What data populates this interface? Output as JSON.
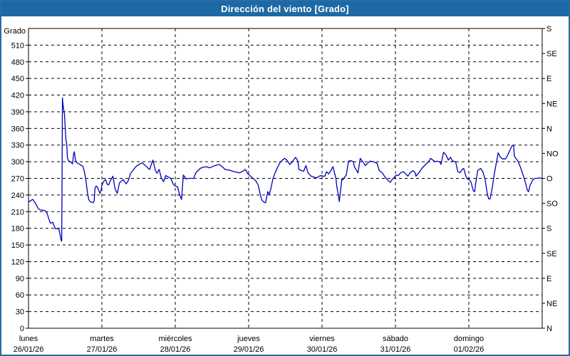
{
  "window": {
    "title": "Dirección del viento [Grado]"
  },
  "colors": {
    "title_bar_bg": "#1d69a5",
    "title_text": "#ffffff",
    "frame_border": "#2a6ca6",
    "plot_background": "#ffffff",
    "plot_border": "#000000",
    "grid": "#000000",
    "label_text": "#000000",
    "line": "#0000bb"
  },
  "chart_data": {
    "type": "line",
    "title": "Dirección del viento [Grado]",
    "y_axis_left": {
      "label": "Grado",
      "min": 0,
      "max": 540,
      "tick_step": 30,
      "tick_labels": [
        0,
        30,
        60,
        90,
        120,
        150,
        180,
        210,
        240,
        270,
        300,
        330,
        360,
        390,
        420,
        450,
        480,
        510
      ]
    },
    "y_axis_right": {
      "unit": "compass",
      "tick_step_deg": 45,
      "labels_top_to_bottom": [
        "S",
        "SE",
        "E",
        "NE",
        "N",
        "NO",
        "O",
        "SO",
        "S",
        "SE",
        "E",
        "NE",
        "N"
      ]
    },
    "x_axis": {
      "span_days": 7,
      "days": [
        {
          "name": "lunes",
          "date": "26/01/26"
        },
        {
          "name": "martes",
          "date": "27/01/26"
        },
        {
          "name": "miércoles",
          "date": "28/01/26"
        },
        {
          "name": "jueves",
          "date": "29/01/26"
        },
        {
          "name": "viernes",
          "date": "30/01/26"
        },
        {
          "name": "sábado",
          "date": "31/01/26"
        },
        {
          "name": "domingo",
          "date": "01/02/26"
        }
      ]
    },
    "grid": {
      "style": "dashed",
      "vertical": "one line per day",
      "horizontal_step_deg": 30
    },
    "legend": "none",
    "series": [
      {
        "name": "Dirección del viento",
        "color": "#0000bb",
        "points_t_days_vs_deg": [
          [
            0.0,
            227
          ],
          [
            0.03,
            230
          ],
          [
            0.06,
            232
          ],
          [
            0.1,
            224
          ],
          [
            0.13,
            216
          ],
          [
            0.16,
            213
          ],
          [
            0.22,
            212
          ],
          [
            0.25,
            208
          ],
          [
            0.28,
            196
          ],
          [
            0.3,
            189
          ],
          [
            0.33,
            191
          ],
          [
            0.35,
            184
          ],
          [
            0.37,
            179
          ],
          [
            0.41,
            180
          ],
          [
            0.43,
            169
          ],
          [
            0.445,
            158
          ],
          [
            0.452,
            157
          ],
          [
            0.456,
            240
          ],
          [
            0.462,
            415
          ],
          [
            0.468,
            406
          ],
          [
            0.475,
            398
          ],
          [
            0.49,
            385
          ],
          [
            0.5,
            362
          ],
          [
            0.51,
            340
          ],
          [
            0.52,
            332
          ],
          [
            0.53,
            307
          ],
          [
            0.545,
            302
          ],
          [
            0.56,
            300
          ],
          [
            0.58,
            299
          ],
          [
            0.6,
            296
          ],
          [
            0.615,
            314
          ],
          [
            0.625,
            318
          ],
          [
            0.64,
            303
          ],
          [
            0.66,
            298
          ],
          [
            0.69,
            296
          ],
          [
            0.71,
            294
          ],
          [
            0.74,
            292
          ],
          [
            0.755,
            285
          ],
          [
            0.775,
            273
          ],
          [
            0.79,
            258
          ],
          [
            0.805,
            243
          ],
          [
            0.82,
            232
          ],
          [
            0.84,
            228
          ],
          [
            0.86,
            227
          ],
          [
            0.88,
            226
          ],
          [
            0.895,
            230
          ],
          [
            0.905,
            251
          ],
          [
            0.92,
            256
          ],
          [
            0.94,
            254
          ],
          [
            0.96,
            247
          ],
          [
            0.975,
            243
          ],
          [
            0.99,
            249
          ],
          [
            1.0,
            257
          ],
          [
            1.02,
            264
          ],
          [
            1.05,
            268
          ],
          [
            1.07,
            260
          ],
          [
            1.09,
            258
          ],
          [
            1.11,
            264
          ],
          [
            1.15,
            274
          ],
          [
            1.18,
            251
          ],
          [
            1.21,
            243
          ],
          [
            1.24,
            262
          ],
          [
            1.29,
            268
          ],
          [
            1.33,
            260
          ],
          [
            1.36,
            266
          ],
          [
            1.39,
            279
          ],
          [
            1.42,
            284
          ],
          [
            1.47,
            292
          ],
          [
            1.52,
            296
          ],
          [
            1.55,
            298
          ],
          [
            1.6,
            292
          ],
          [
            1.65,
            286
          ],
          [
            1.695,
            303
          ],
          [
            1.73,
            284
          ],
          [
            1.75,
            279
          ],
          [
            1.78,
            286
          ],
          [
            1.81,
            271
          ],
          [
            1.84,
            264
          ],
          [
            1.87,
            275
          ],
          [
            1.91,
            272
          ],
          [
            1.94,
            270
          ],
          [
            1.97,
            260
          ],
          [
            2.0,
            256
          ],
          [
            2.03,
            255
          ],
          [
            2.06,
            240
          ],
          [
            2.085,
            232
          ],
          [
            2.11,
            276
          ],
          [
            2.15,
            269
          ],
          [
            2.18,
            270
          ],
          [
            2.25,
            270
          ],
          [
            2.28,
            280
          ],
          [
            2.34,
            288
          ],
          [
            2.38,
            290
          ],
          [
            2.42,
            291
          ],
          [
            2.47,
            289
          ],
          [
            2.52,
            292
          ],
          [
            2.57,
            294
          ],
          [
            2.6,
            295
          ],
          [
            2.64,
            291
          ],
          [
            2.68,
            286
          ],
          [
            2.73,
            285
          ],
          [
            2.78,
            283
          ],
          [
            2.83,
            281
          ],
          [
            2.88,
            280
          ],
          [
            2.92,
            283
          ],
          [
            2.955,
            286
          ],
          [
            2.99,
            278
          ],
          [
            3.01,
            276
          ],
          [
            3.04,
            272
          ],
          [
            3.07,
            269
          ],
          [
            3.1,
            265
          ],
          [
            3.13,
            258
          ],
          [
            3.15,
            246
          ],
          [
            3.17,
            235
          ],
          [
            3.18,
            231
          ],
          [
            3.21,
            227
          ],
          [
            3.23,
            226
          ],
          [
            3.26,
            246
          ],
          [
            3.28,
            241
          ],
          [
            3.3,
            250
          ],
          [
            3.33,
            269
          ],
          [
            3.36,
            280
          ],
          [
            3.39,
            289
          ],
          [
            3.43,
            299
          ],
          [
            3.46,
            303
          ],
          [
            3.49,
            306
          ],
          [
            3.52,
            303
          ],
          [
            3.56,
            295
          ],
          [
            3.59,
            299
          ],
          [
            3.64,
            308
          ],
          [
            3.67,
            301
          ],
          [
            3.685,
            286
          ],
          [
            3.72,
            284
          ],
          [
            3.75,
            283
          ],
          [
            3.78,
            293
          ],
          [
            3.81,
            280
          ],
          [
            3.85,
            274
          ],
          [
            3.89,
            272
          ],
          [
            3.93,
            271
          ],
          [
            3.96,
            274
          ],
          [
            3.99,
            275
          ],
          [
            4.01,
            274
          ],
          [
            4.04,
            274
          ],
          [
            4.06,
            282
          ],
          [
            4.09,
            278
          ],
          [
            4.12,
            284
          ],
          [
            4.15,
            291
          ],
          [
            4.19,
            269
          ],
          [
            4.2,
            256
          ],
          [
            4.22,
            241
          ],
          [
            4.235,
            228
          ],
          [
            4.27,
            269
          ],
          [
            4.28,
            267
          ],
          [
            4.33,
            276
          ],
          [
            4.36,
            301
          ],
          [
            4.4,
            302
          ],
          [
            4.43,
            299
          ],
          [
            4.44,
            291
          ],
          [
            4.48,
            282
          ],
          [
            4.49,
            280
          ],
          [
            4.52,
            306
          ],
          [
            4.56,
            299
          ],
          [
            4.59,
            293
          ],
          [
            4.62,
            297
          ],
          [
            4.65,
            301
          ],
          [
            4.7,
            300
          ],
          [
            4.75,
            297
          ],
          [
            4.78,
            284
          ],
          [
            4.82,
            280
          ],
          [
            4.85,
            274
          ],
          [
            4.88,
            269
          ],
          [
            4.91,
            265
          ],
          [
            4.93,
            263
          ],
          [
            4.96,
            269
          ],
          [
            4.98,
            271
          ],
          [
            5.01,
            276
          ],
          [
            5.04,
            275
          ],
          [
            5.07,
            280
          ],
          [
            5.11,
            282
          ],
          [
            5.14,
            278
          ],
          [
            5.17,
            274
          ],
          [
            5.2,
            280
          ],
          [
            5.24,
            284
          ],
          [
            5.27,
            280
          ],
          [
            5.28,
            274
          ],
          [
            5.33,
            282
          ],
          [
            5.36,
            288
          ],
          [
            5.41,
            295
          ],
          [
            5.45,
            300
          ],
          [
            5.48,
            306
          ],
          [
            5.51,
            303
          ],
          [
            5.54,
            300
          ],
          [
            5.57,
            301
          ],
          [
            5.61,
            299
          ],
          [
            5.62,
            295
          ],
          [
            5.655,
            317
          ],
          [
            5.69,
            312
          ],
          [
            5.72,
            303
          ],
          [
            5.75,
            308
          ],
          [
            5.78,
            301
          ],
          [
            5.82,
            300
          ],
          [
            5.85,
            282
          ],
          [
            5.88,
            280
          ],
          [
            5.91,
            286
          ],
          [
            5.93,
            288
          ],
          [
            5.96,
            274
          ],
          [
            5.98,
            269
          ],
          [
            6.01,
            267
          ],
          [
            6.03,
            263
          ],
          [
            6.06,
            248
          ],
          [
            6.08,
            246
          ],
          [
            6.09,
            258
          ],
          [
            6.12,
            284
          ],
          [
            6.16,
            288
          ],
          [
            6.19,
            282
          ],
          [
            6.22,
            269
          ],
          [
            6.25,
            243
          ],
          [
            6.27,
            233
          ],
          [
            6.29,
            233
          ],
          [
            6.32,
            254
          ],
          [
            6.35,
            280
          ],
          [
            6.38,
            301
          ],
          [
            6.4,
            316
          ],
          [
            6.43,
            308
          ],
          [
            6.46,
            305
          ],
          [
            6.5,
            305
          ],
          [
            6.53,
            312
          ],
          [
            6.56,
            321
          ],
          [
            6.59,
            329
          ],
          [
            6.61,
            330
          ],
          [
            6.62,
            310
          ],
          [
            6.64,
            306
          ],
          [
            6.67,
            301
          ],
          [
            6.71,
            288
          ],
          [
            6.74,
            276
          ],
          [
            6.77,
            263
          ],
          [
            6.8,
            248
          ],
          [
            6.815,
            246
          ],
          [
            6.83,
            256
          ],
          [
            6.87,
            267
          ],
          [
            6.9,
            270
          ],
          [
            6.93,
            270
          ],
          [
            6.96,
            271
          ],
          [
            6.99,
            270
          ]
        ]
      }
    ]
  }
}
